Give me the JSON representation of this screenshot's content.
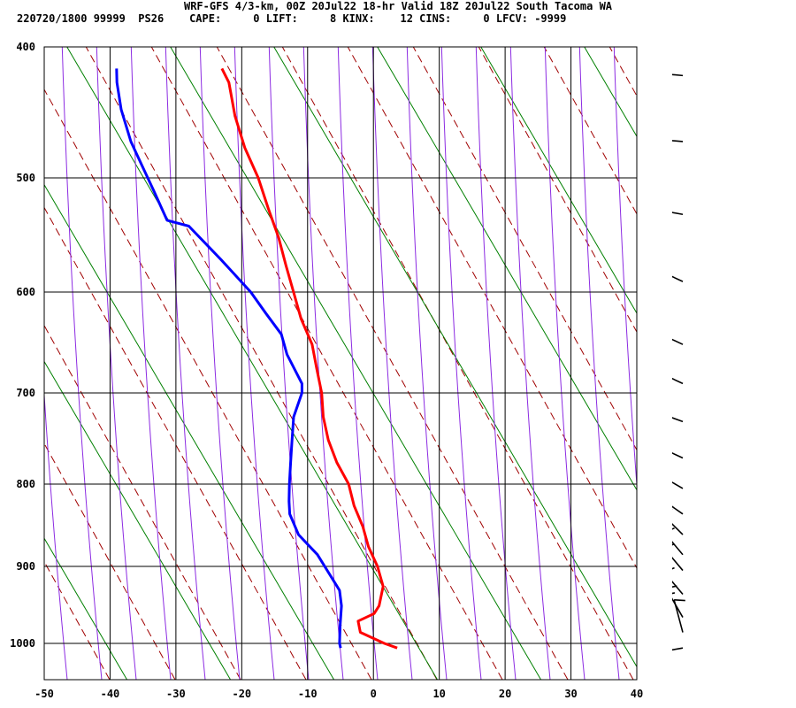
{
  "header": {
    "title": "WRF-GFS 4/3-km, 00Z 20Jul22 18-hr Valid 18Z 20Jul22 South Tacoma WA",
    "stats": "220720/1800 99999  PS26    CAPE:     0 LIFT:     8 KINX:    12 CINS:     0 LFCV: -9999"
  },
  "colors": {
    "temperature": "#ff0000",
    "dewpoint": "#0000ff",
    "dry_adiabat": "#a00000",
    "moist_adiabat": "#8c2be2",
    "mixing_ratio": "#008000",
    "grid": "#000000",
    "barb": "#000000"
  },
  "chart_data": {
    "type": "line",
    "title": "",
    "xlabel": "",
    "ylabel": "",
    "x_ticks": [
      -50,
      -40,
      -30,
      -20,
      -10,
      0,
      10,
      20,
      30,
      40
    ],
    "y_ticks": [
      400,
      500,
      600,
      700,
      800,
      900,
      1000
    ],
    "xlim": [
      -50,
      40
    ],
    "ylim": [
      1040,
      400
    ],
    "skew": "skew-T log-p",
    "grid": true,
    "series": [
      {
        "key": "temperature",
        "points": [
          [
            2.6,
            1005
          ],
          [
            0.5,
            1000
          ],
          [
            -3.5,
            985
          ],
          [
            -4.2,
            970
          ],
          [
            -2.0,
            960
          ],
          [
            -1.5,
            950
          ],
          [
            -1.5,
            925
          ],
          [
            -3.0,
            900
          ],
          [
            -5.0,
            875
          ],
          [
            -6.5,
            850
          ],
          [
            -8.5,
            825
          ],
          [
            -10.0,
            800
          ],
          [
            -12.5,
            775
          ],
          [
            -14.5,
            750
          ],
          [
            -16.0,
            725
          ],
          [
            -17.0,
            700
          ],
          [
            -18.5,
            675
          ],
          [
            -20.0,
            650
          ],
          [
            -22.5,
            625
          ],
          [
            -24.5,
            600
          ],
          [
            -26.5,
            575
          ],
          [
            -28.5,
            550
          ],
          [
            -31.0,
            525
          ],
          [
            -33.5,
            500
          ],
          [
            -36.5,
            475
          ],
          [
            -39.0,
            450
          ],
          [
            -41.0,
            425
          ],
          [
            -42.5,
            415
          ]
        ]
      },
      {
        "key": "dewpoint",
        "points": [
          [
            -6.0,
            1005
          ],
          [
            -6.3,
            1000
          ],
          [
            -6.8,
            975
          ],
          [
            -7.2,
            950
          ],
          [
            -8.0,
            930
          ],
          [
            -10.0,
            910
          ],
          [
            -12.5,
            885
          ],
          [
            -16.0,
            860
          ],
          [
            -18.0,
            835
          ],
          [
            -18.5,
            820
          ],
          [
            -19.0,
            800
          ],
          [
            -19.5,
            775
          ],
          [
            -20.0,
            750
          ],
          [
            -20.5,
            725
          ],
          [
            -20.0,
            700
          ],
          [
            -20.3,
            690
          ],
          [
            -23.5,
            660
          ],
          [
            -25.0,
            640
          ],
          [
            -28.0,
            620
          ],
          [
            -31.0,
            600
          ],
          [
            -36.5,
            570
          ],
          [
            -42.5,
            540
          ],
          [
            -46.0,
            535
          ],
          [
            -49.0,
            510
          ],
          [
            -51.5,
            490
          ],
          [
            -54.0,
            470
          ],
          [
            -56.5,
            445
          ],
          [
            -58.0,
            425
          ],
          [
            -58.5,
            415
          ]
        ]
      }
    ],
    "wind_barbs": [
      {
        "p": 420,
        "dir": 275,
        "kt": 45
      },
      {
        "p": 470,
        "dir": 275,
        "kt": 40
      },
      {
        "p": 530,
        "dir": 280,
        "kt": 35
      },
      {
        "p": 590,
        "dir": 295,
        "kt": 25
      },
      {
        "p": 650,
        "dir": 295,
        "kt": 20
      },
      {
        "p": 690,
        "dir": 295,
        "kt": 20
      },
      {
        "p": 730,
        "dir": 290,
        "kt": 20
      },
      {
        "p": 770,
        "dir": 295,
        "kt": 20
      },
      {
        "p": 805,
        "dir": 300,
        "kt": 20
      },
      {
        "p": 835,
        "dir": 305,
        "kt": 20
      },
      {
        "p": 860,
        "dir": 315,
        "kt": 20
      },
      {
        "p": 885,
        "dir": 320,
        "kt": 20
      },
      {
        "p": 905,
        "dir": 320,
        "kt": 20
      },
      {
        "p": 935,
        "dir": 320,
        "kt": 20
      },
      {
        "p": 965,
        "dir": 330,
        "kt": 15
      },
      {
        "p": 985,
        "dir": 345,
        "kt": 10
      },
      {
        "p": 1005,
        "dir": 260,
        "kt": 10
      }
    ]
  }
}
